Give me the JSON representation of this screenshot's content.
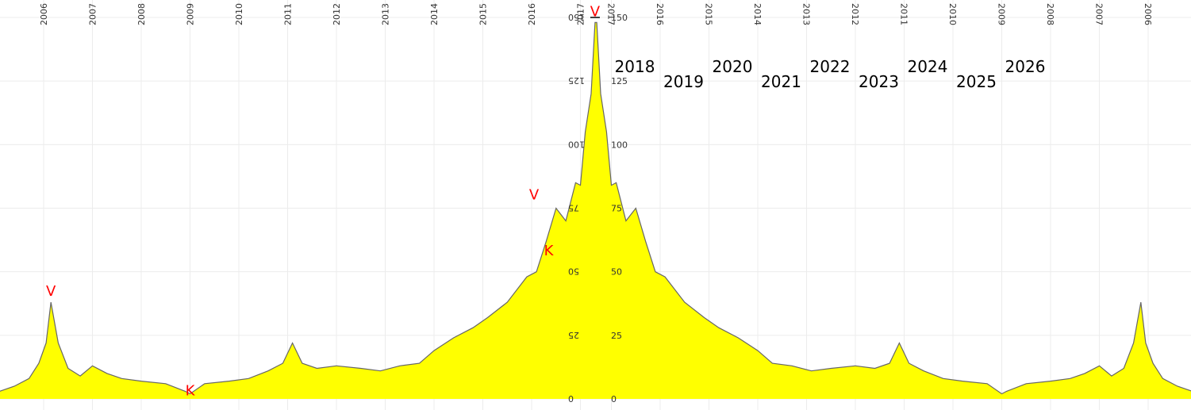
{
  "chart_data": {
    "type": "area",
    "title": "",
    "xlabel": "",
    "ylabel": "",
    "ylim": [
      0,
      150
    ],
    "grid": true,
    "fill_color": "#ffff00",
    "line_color": "#666666",
    "marker_color": "#ff0000",
    "y_ticks_left": [
      "0",
      "25",
      "50",
      "75",
      "100",
      "125",
      "150"
    ],
    "y_ticks_right": [
      "0",
      "25",
      "50",
      "75",
      "100",
      "125",
      "150"
    ],
    "x_ticks_left": [
      "2006",
      "2007",
      "2008",
      "2009",
      "2010",
      "2011",
      "2012",
      "2013",
      "2014",
      "2015",
      "2016",
      "2017"
    ],
    "x_ticks_right_mirrored": [
      "2017",
      "2016",
      "2015",
      "2014",
      "2013",
      "2012",
      "2011",
      "2010",
      "2009",
      "2008",
      "2007",
      "2006"
    ],
    "future_year_labels": [
      "2018",
      "2019",
      "2020",
      "2021",
      "2022",
      "2023",
      "2024",
      "2025",
      "2026"
    ],
    "series": [
      {
        "values": [
          [
            2005.1,
            3
          ],
          [
            2005.4,
            5
          ],
          [
            2005.7,
            8
          ],
          [
            2005.9,
            14
          ],
          [
            2006.05,
            22
          ],
          [
            2006.15,
            38
          ],
          [
            2006.3,
            22
          ],
          [
            2006.5,
            12
          ],
          [
            2006.75,
            9
          ],
          [
            2007.0,
            13
          ],
          [
            2007.3,
            10
          ],
          [
            2007.6,
            8
          ],
          [
            2008.0,
            7
          ],
          [
            2008.5,
            6
          ],
          [
            2008.9,
            3
          ],
          [
            2009.0,
            2
          ],
          [
            2009.3,
            6
          ],
          [
            2009.8,
            7
          ],
          [
            2010.2,
            8
          ],
          [
            2010.6,
            11
          ],
          [
            2010.9,
            14
          ],
          [
            2011.1,
            22
          ],
          [
            2011.3,
            14
          ],
          [
            2011.6,
            12
          ],
          [
            2012.0,
            13
          ],
          [
            2012.5,
            12
          ],
          [
            2012.9,
            11
          ],
          [
            2013.3,
            13
          ],
          [
            2013.7,
            14
          ],
          [
            2014.0,
            19
          ],
          [
            2014.4,
            24
          ],
          [
            2014.8,
            28
          ],
          [
            2015.1,
            32
          ],
          [
            2015.5,
            38
          ],
          [
            2015.9,
            48
          ],
          [
            2016.1,
            50
          ],
          [
            2016.3,
            62
          ],
          [
            2016.5,
            75
          ],
          [
            2016.7,
            70
          ],
          [
            2016.9,
            85
          ],
          [
            2017.0,
            84
          ],
          [
            2017.1,
            105
          ],
          [
            2017.22,
            120
          ],
          [
            2017.3,
            148
          ]
        ]
      }
    ],
    "markers": [
      {
        "label": "V",
        "year": 2017.3,
        "value": 148
      },
      {
        "label": "V",
        "year": 2016.05,
        "value": 76
      },
      {
        "label": "K",
        "year": 2016.35,
        "value": 57
      },
      {
        "label": "V",
        "year": 2006.15,
        "value": 38
      },
      {
        "label": "K",
        "year": 2009.0,
        "value": 2
      }
    ]
  }
}
